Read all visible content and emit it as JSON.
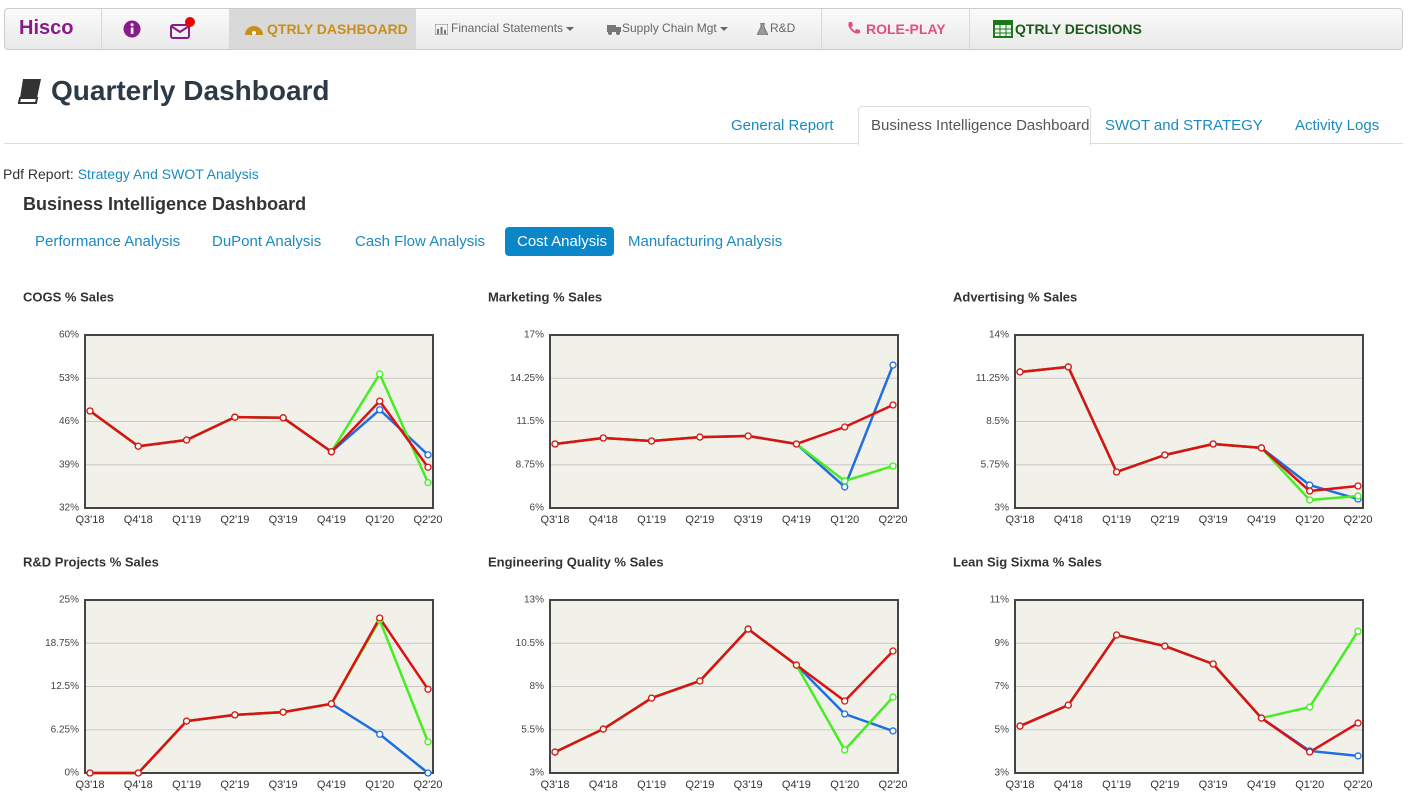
{
  "nav": {
    "brand": "Hisco",
    "items": [
      "QTRLY DASHBOARD",
      "Financial Statements",
      "Supply Chain Mgt",
      "R&D",
      "ROLE-PLAY",
      "QTRLY DECISIONS"
    ]
  },
  "header": {
    "title": "Quarterly Dashboard"
  },
  "tabs": [
    "General Report",
    "Business Intelligence Dashboard",
    "SWOT and STRATEGY",
    "Activity Logs"
  ],
  "pdf_report": {
    "label": "Pdf Report:",
    "link": "Strategy And SWOT Analysis"
  },
  "section_title": "Business Intelligence Dashboard",
  "subtabs": [
    "Performance Analysis",
    "DuPont Analysis",
    "Cash Flow Analysis",
    "Cost Analysis",
    "Manufacturing Analysis"
  ],
  "chart_data": [
    {
      "type": "line",
      "title": "COGS % Sales",
      "categories": [
        "Q3'18",
        "Q4'18",
        "Q1'19",
        "Q2'19",
        "Q3'19",
        "Q4'19",
        "Q1'20",
        "Q2'20"
      ],
      "series": [
        {
          "color": "#1f6fe0",
          "values": [
            47.7,
            42.0,
            43.0,
            46.7,
            46.6,
            41.1,
            47.9,
            40.6
          ]
        },
        {
          "color": "#44ee22",
          "values": [
            47.7,
            42.0,
            43.0,
            46.7,
            46.6,
            41.1,
            53.7,
            36.1
          ]
        },
        {
          "color": "#dd1111",
          "values": [
            47.7,
            42.0,
            43.0,
            46.7,
            46.6,
            41.1,
            49.3,
            38.6
          ]
        }
      ],
      "ylim": [
        32,
        60
      ],
      "yticks": [
        {
          "value": 32,
          "label": "32%"
        },
        {
          "value": 39,
          "label": "39%"
        },
        {
          "value": 46,
          "label": "46%"
        },
        {
          "value": 53,
          "label": "53%"
        },
        {
          "value": 60,
          "label": "60%"
        }
      ],
      "grid": true
    },
    {
      "type": "line",
      "title": "Marketing % Sales",
      "categories": [
        "Q3'18",
        "Q4'18",
        "Q1'19",
        "Q2'19",
        "Q3'19",
        "Q4'19",
        "Q1'20",
        "Q2'20"
      ],
      "series": [
        {
          "color": "#1f6fe0",
          "values": [
            10.07,
            10.45,
            10.26,
            10.51,
            10.58,
            10.07,
            7.34,
            15.09
          ]
        },
        {
          "color": "#44ee22",
          "values": [
            10.07,
            10.45,
            10.26,
            10.51,
            10.58,
            10.07,
            7.72,
            8.67
          ]
        },
        {
          "color": "#dd1111",
          "values": [
            10.07,
            10.45,
            10.26,
            10.51,
            10.58,
            10.07,
            11.15,
            12.55
          ]
        }
      ],
      "ylim": [
        6,
        17
      ],
      "yticks": [
        {
          "value": 6,
          "label": "6%"
        },
        {
          "value": 8.75,
          "label": "8.75%"
        },
        {
          "value": 11.5,
          "label": "11.5%"
        },
        {
          "value": 14.25,
          "label": "14.25%"
        },
        {
          "value": 17,
          "label": "17%"
        }
      ],
      "grid": true
    },
    {
      "type": "line",
      "title": "Advertising % Sales",
      "categories": [
        "Q3'18",
        "Q4'18",
        "Q1'19",
        "Q2'19",
        "Q3'19",
        "Q4'19",
        "Q1'20",
        "Q2'20"
      ],
      "series": [
        {
          "color": "#1f6fe0",
          "values": [
            11.65,
            11.97,
            5.29,
            6.37,
            7.07,
            6.82,
            4.46,
            3.57
          ]
        },
        {
          "color": "#44ee22",
          "values": [
            11.65,
            11.97,
            5.29,
            6.37,
            7.07,
            6.82,
            3.51,
            3.76
          ]
        },
        {
          "color": "#dd1111",
          "values": [
            11.65,
            11.97,
            5.29,
            6.37,
            7.07,
            6.82,
            4.08,
            4.4
          ]
        }
      ],
      "ylim": [
        3,
        14
      ],
      "yticks": [
        {
          "value": 3,
          "label": "3%"
        },
        {
          "value": 5.75,
          "label": "5.75%"
        },
        {
          "value": 8.5,
          "label": "8.5%"
        },
        {
          "value": 11.25,
          "label": "11.25%"
        },
        {
          "value": 14,
          "label": "14%"
        }
      ],
      "grid": true
    },
    {
      "type": "line",
      "title": "R&D Projects % Sales",
      "categories": [
        "Q3'18",
        "Q4'18",
        "Q1'19",
        "Q2'19",
        "Q3'19",
        "Q4'19",
        "Q1'20",
        "Q2'20"
      ],
      "series": [
        {
          "color": "#1f6fe0",
          "values": [
            0,
            0,
            7.5,
            8.4,
            8.8,
            10.0,
            5.6,
            0
          ]
        },
        {
          "color": "#44ee22",
          "values": [
            0,
            0,
            7.5,
            8.4,
            8.8,
            10.0,
            22.1,
            4.5
          ]
        },
        {
          "color": "#dd1111",
          "values": [
            0,
            0,
            7.5,
            8.4,
            8.8,
            10.0,
            22.4,
            12.1
          ]
        }
      ],
      "ylim": [
        0,
        25
      ],
      "yticks": [
        {
          "value": 0,
          "label": "0%"
        },
        {
          "value": 6.25,
          "label": "6.25%"
        },
        {
          "value": 12.5,
          "label": "12.5%"
        },
        {
          "value": 18.75,
          "label": "18.75%"
        },
        {
          "value": 25,
          "label": "25%"
        }
      ],
      "grid": true
    },
    {
      "type": "line",
      "title": "Engineering Quality % Sales",
      "categories": [
        "Q3'18",
        "Q4'18",
        "Q1'19",
        "Q2'19",
        "Q3'19",
        "Q4'19",
        "Q1'20",
        "Q2'20"
      ],
      "series": [
        {
          "color": "#1f6fe0",
          "values": [
            4.21,
            5.54,
            7.33,
            8.32,
            11.32,
            9.24,
            6.41,
            5.43
          ]
        },
        {
          "color": "#44ee22",
          "values": [
            4.21,
            5.54,
            7.33,
            8.32,
            11.32,
            9.24,
            4.33,
            7.39
          ]
        },
        {
          "color": "#dd1111",
          "values": [
            4.21,
            5.54,
            7.33,
            8.32,
            11.32,
            9.24,
            7.16,
            10.05
          ]
        }
      ],
      "ylim": [
        3,
        13
      ],
      "yticks": [
        {
          "value": 3,
          "label": "3%"
        },
        {
          "value": 5.5,
          "label": "5.5%"
        },
        {
          "value": 8,
          "label": "8%"
        },
        {
          "value": 10.5,
          "label": "10.5%"
        },
        {
          "value": 13,
          "label": "13%"
        }
      ],
      "grid": true
    },
    {
      "type": "line",
      "title": "Lean Sig Sixma % Sales",
      "categories": [
        "Q3'18",
        "Q4'18",
        "Q1'19",
        "Q2'19",
        "Q3'19",
        "Q4'19",
        "Q1'20",
        "Q2'20"
      ],
      "series": [
        {
          "color": "#1f6fe0",
          "values": [
            5.17,
            6.14,
            9.38,
            8.87,
            8.04,
            5.54,
            4.02,
            3.79
          ]
        },
        {
          "color": "#44ee22",
          "values": [
            5.17,
            6.14,
            9.38,
            8.87,
            8.04,
            5.54,
            6.05,
            9.56
          ]
        },
        {
          "color": "#dd1111",
          "values": [
            5.17,
            6.14,
            9.38,
            8.87,
            8.04,
            5.54,
            3.97,
            5.31
          ]
        }
      ],
      "ylim": [
        3,
        11
      ],
      "yticks": [
        {
          "value": 3,
          "label": "3%"
        },
        {
          "value": 5,
          "label": "5%"
        },
        {
          "value": 7,
          "label": "7%"
        },
        {
          "value": 9,
          "label": "9%"
        },
        {
          "value": 11,
          "label": "11%"
        }
      ],
      "grid": true
    }
  ]
}
